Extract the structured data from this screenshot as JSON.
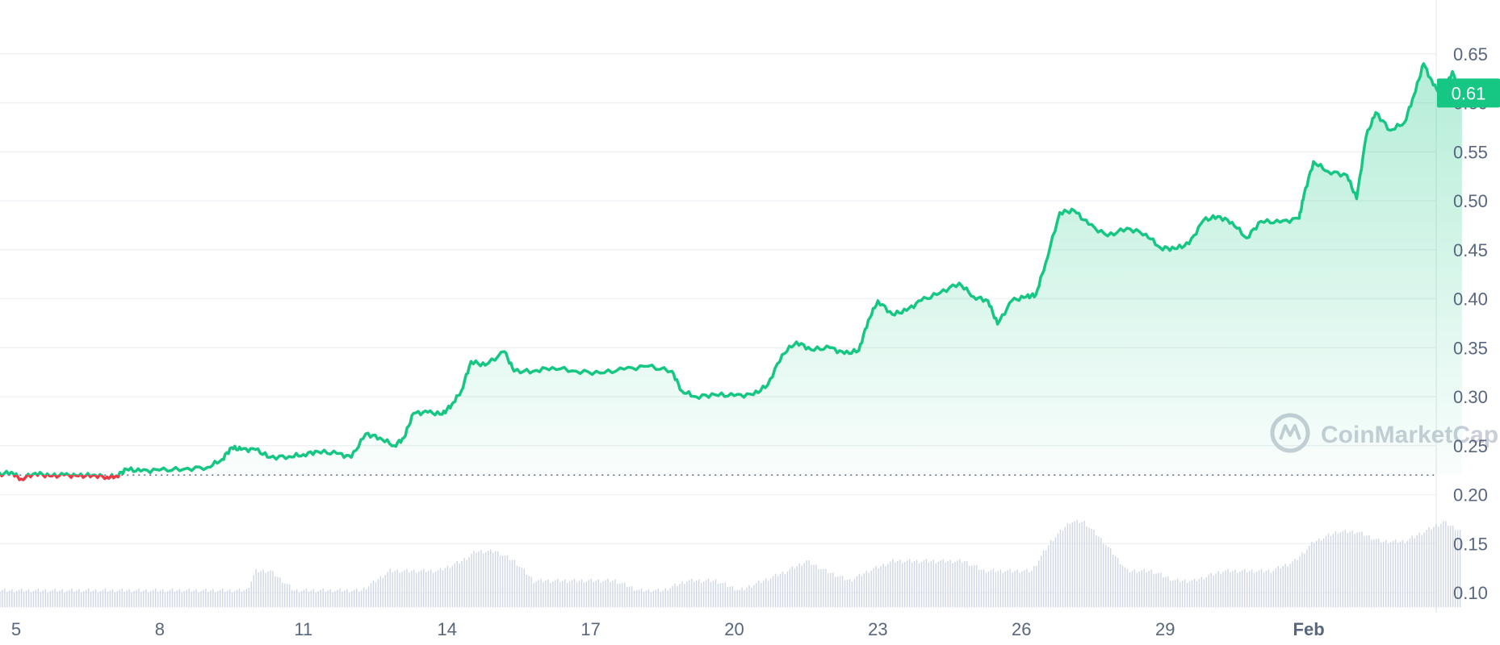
{
  "chart_data": {
    "type": "area",
    "title": "",
    "xlabel": "",
    "ylabel": "",
    "ylim": [
      0.08,
      0.7
    ],
    "grid": true,
    "colors": {
      "up": "#16c784",
      "down": "#ea3943",
      "volume": "#cfd6e4",
      "grid": "#eff2f5",
      "axis_text": "#58667e"
    },
    "y_ticks": [
      "0.10",
      "0.15",
      "0.20",
      "0.25",
      "0.30",
      "0.35",
      "0.40",
      "0.45",
      "0.50",
      "0.55",
      "0.60",
      "0.65"
    ],
    "x_ticks": [
      {
        "label": "5",
        "day": 5
      },
      {
        "label": "8",
        "day": 8
      },
      {
        "label": "11",
        "day": 11
      },
      {
        "label": "14",
        "day": 14
      },
      {
        "label": "17",
        "day": 17
      },
      {
        "label": "20",
        "day": 20
      },
      {
        "label": "23",
        "day": 23
      },
      {
        "label": "26",
        "day": 26
      },
      {
        "label": "29",
        "day": 29
      },
      {
        "label": "Feb",
        "day": 32
      }
    ],
    "reference_price": 0.22,
    "current_price_label": "0.61",
    "series": [
      {
        "points": [
          [
            4.6,
            0.22
          ],
          [
            4.9,
            0.223
          ],
          [
            5.1,
            0.216
          ],
          [
            5.4,
            0.222
          ],
          [
            5.7,
            0.219
          ],
          [
            6.0,
            0.22
          ],
          [
            6.3,
            0.219
          ],
          [
            6.6,
            0.22
          ],
          [
            6.9,
            0.218
          ],
          [
            7.1,
            0.219
          ],
          [
            7.3,
            0.226
          ],
          [
            7.6,
            0.224
          ],
          [
            8.0,
            0.225
          ],
          [
            8.5,
            0.226
          ],
          [
            9.0,
            0.228
          ],
          [
            9.3,
            0.236
          ],
          [
            9.5,
            0.248
          ],
          [
            9.7,
            0.246
          ],
          [
            10.0,
            0.246
          ],
          [
            10.3,
            0.238
          ],
          [
            10.7,
            0.239
          ],
          [
            11.0,
            0.241
          ],
          [
            11.3,
            0.244
          ],
          [
            11.7,
            0.242
          ],
          [
            12.0,
            0.238
          ],
          [
            12.3,
            0.262
          ],
          [
            12.6,
            0.258
          ],
          [
            12.9,
            0.25
          ],
          [
            13.1,
            0.258
          ],
          [
            13.3,
            0.283
          ],
          [
            13.6,
            0.284
          ],
          [
            13.9,
            0.282
          ],
          [
            14.1,
            0.292
          ],
          [
            14.3,
            0.306
          ],
          [
            14.5,
            0.336
          ],
          [
            14.8,
            0.332
          ],
          [
            15.2,
            0.346
          ],
          [
            15.4,
            0.326
          ],
          [
            15.8,
            0.326
          ],
          [
            16.2,
            0.33
          ],
          [
            16.7,
            0.326
          ],
          [
            17.2,
            0.324
          ],
          [
            17.7,
            0.328
          ],
          [
            18.2,
            0.331
          ],
          [
            18.7,
            0.326
          ],
          [
            18.9,
            0.306
          ],
          [
            19.2,
            0.3
          ],
          [
            19.6,
            0.302
          ],
          [
            20.0,
            0.301
          ],
          [
            20.4,
            0.302
          ],
          [
            20.7,
            0.312
          ],
          [
            21.0,
            0.343
          ],
          [
            21.3,
            0.356
          ],
          [
            21.6,
            0.348
          ],
          [
            22.0,
            0.35
          ],
          [
            22.3,
            0.344
          ],
          [
            22.6,
            0.347
          ],
          [
            22.8,
            0.378
          ],
          [
            23.0,
            0.398
          ],
          [
            23.3,
            0.384
          ],
          [
            23.6,
            0.388
          ],
          [
            23.9,
            0.398
          ],
          [
            24.3,
            0.406
          ],
          [
            24.7,
            0.416
          ],
          [
            25.0,
            0.402
          ],
          [
            25.3,
            0.398
          ],
          [
            25.5,
            0.374
          ],
          [
            25.8,
            0.398
          ],
          [
            26.1,
            0.402
          ],
          [
            26.3,
            0.404
          ],
          [
            26.5,
            0.436
          ],
          [
            26.8,
            0.488
          ],
          [
            27.1,
            0.49
          ],
          [
            27.4,
            0.476
          ],
          [
            27.8,
            0.464
          ],
          [
            28.2,
            0.472
          ],
          [
            28.6,
            0.466
          ],
          [
            28.9,
            0.452
          ],
          [
            29.2,
            0.451
          ],
          [
            29.5,
            0.456
          ],
          [
            29.8,
            0.48
          ],
          [
            30.1,
            0.484
          ],
          [
            30.4,
            0.478
          ],
          [
            30.7,
            0.462
          ],
          [
            31.0,
            0.479
          ],
          [
            31.4,
            0.478
          ],
          [
            31.8,
            0.482
          ],
          [
            31.9,
            0.506
          ],
          [
            32.1,
            0.54
          ],
          [
            32.4,
            0.53
          ],
          [
            32.8,
            0.526
          ],
          [
            33.0,
            0.502
          ],
          [
            33.2,
            0.566
          ],
          [
            33.4,
            0.59
          ],
          [
            33.7,
            0.572
          ],
          [
            34.0,
            0.58
          ],
          [
            34.2,
            0.608
          ],
          [
            34.4,
            0.64
          ],
          [
            34.6,
            0.618
          ],
          [
            34.8,
            0.608
          ],
          [
            35.0,
            0.632
          ],
          [
            35.2,
            0.61
          ]
        ]
      }
    ],
    "volume": [
      [
        4.6,
        0.1
      ],
      [
        5.0,
        0.1
      ],
      [
        6.0,
        0.1
      ],
      [
        7.0,
        0.1
      ],
      [
        8.0,
        0.1
      ],
      [
        9.0,
        0.1
      ],
      [
        9.4,
        0.1
      ],
      [
        9.8,
        0.1
      ],
      [
        10.0,
        0.12
      ],
      [
        10.3,
        0.12
      ],
      [
        10.8,
        0.1
      ],
      [
        11.5,
        0.1
      ],
      [
        12.2,
        0.1
      ],
      [
        12.8,
        0.12
      ],
      [
        13.3,
        0.12
      ],
      [
        13.8,
        0.12
      ],
      [
        14.3,
        0.13
      ],
      [
        14.6,
        0.14
      ],
      [
        15.0,
        0.14
      ],
      [
        15.4,
        0.13
      ],
      [
        15.8,
        0.11
      ],
      [
        16.5,
        0.11
      ],
      [
        17.5,
        0.11
      ],
      [
        18.0,
        0.1
      ],
      [
        18.5,
        0.1
      ],
      [
        19.0,
        0.11
      ],
      [
        19.6,
        0.11
      ],
      [
        20.1,
        0.1
      ],
      [
        20.6,
        0.11
      ],
      [
        21.1,
        0.12
      ],
      [
        21.5,
        0.13
      ],
      [
        21.9,
        0.12
      ],
      [
        22.4,
        0.11
      ],
      [
        22.8,
        0.12
      ],
      [
        23.3,
        0.13
      ],
      [
        23.8,
        0.13
      ],
      [
        24.3,
        0.13
      ],
      [
        24.8,
        0.13
      ],
      [
        25.2,
        0.12
      ],
      [
        25.7,
        0.12
      ],
      [
        26.2,
        0.12
      ],
      [
        26.6,
        0.15
      ],
      [
        27.0,
        0.17
      ],
      [
        27.3,
        0.17
      ],
      [
        27.7,
        0.15
      ],
      [
        28.2,
        0.12
      ],
      [
        28.7,
        0.12
      ],
      [
        29.2,
        0.11
      ],
      [
        29.6,
        0.11
      ],
      [
        30.2,
        0.12
      ],
      [
        30.7,
        0.12
      ],
      [
        31.2,
        0.12
      ],
      [
        31.7,
        0.13
      ],
      [
        32.1,
        0.15
      ],
      [
        32.6,
        0.16
      ],
      [
        33.0,
        0.16
      ],
      [
        33.5,
        0.15
      ],
      [
        34.0,
        0.15
      ],
      [
        34.4,
        0.16
      ],
      [
        34.8,
        0.17
      ],
      [
        35.2,
        0.16
      ]
    ]
  },
  "watermark": {
    "text": "CoinMarketCap"
  }
}
